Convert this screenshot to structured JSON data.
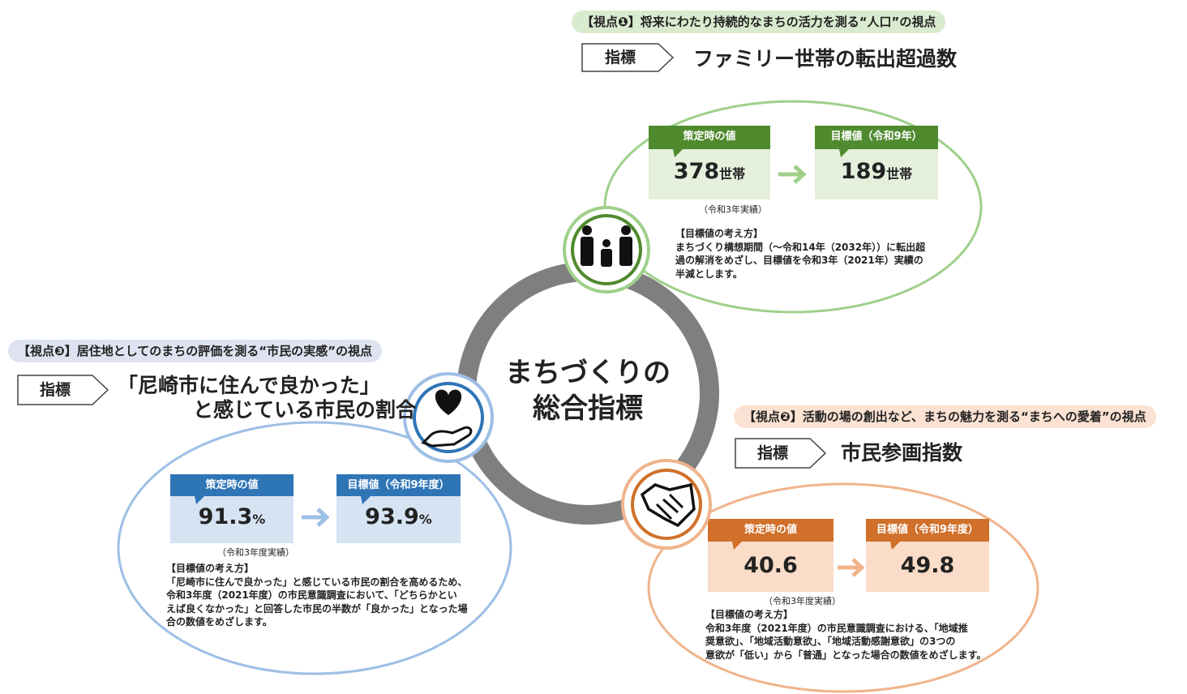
{
  "center": {
    "lines": [
      "まちづくりの",
      "総合指標"
    ]
  },
  "viewpoints": [
    {
      "header": "【視点❶】将来にわたり持続的なまちの活力を測る“人口”の視点",
      "indicator_label": "指標",
      "indicator_name": [
        "ファミリー世帯の転出超過数"
      ],
      "baseline": {
        "label": "策定時の値",
        "value": 378,
        "unit": "世帯",
        "note": "（令和3年実績）"
      },
      "target": {
        "label": "目標値（令和9年）",
        "value": 189,
        "unit": "世帯"
      },
      "rationale": {
        "title": "【目標値の考え方】",
        "lines": [
          "まちづくり構想期間（〜令和14年（2032年））に転出超",
          "過の解消をめざし、目標値を令和3年（2021年）実績の",
          "半減とします。"
        ]
      }
    },
    {
      "header": "【視点❷】活動の場の創出など、まちの魅力を測る“まちへの愛着”の視点",
      "indicator_label": "指標",
      "indicator_name": [
        "市民参画指数"
      ],
      "baseline": {
        "label": "策定時の値",
        "value": 40.6,
        "note": "（令和3年度実績）"
      },
      "target": {
        "label": "目標値（令和9年度）",
        "value": 49.8
      },
      "rationale": {
        "title": "【目標値の考え方】",
        "lines": [
          "令和3年度（2021年度）の市民意識調査における、「地域推",
          "奨意欲」、「地域活動意欲」、「地域活動感謝意欲」の3つの",
          "意欲が「低い」から「普通」となった場合の数値をめざします。"
        ]
      }
    },
    {
      "header": "【視点❸】居住地としてのまちの評価を測る“市民の実感”の視点",
      "indicator_label": "指標",
      "indicator_name": [
        "「尼崎市に住んで良かった」",
        "と感じている市民の割合"
      ],
      "baseline": {
        "label": "策定時の値",
        "value": 91.3,
        "unit": "%",
        "note": "（令和3年度実績）"
      },
      "target": {
        "label": "目標値（令和9年度）",
        "value": 93.9,
        "unit": "%"
      },
      "rationale": {
        "title": "【目標値の考え方】",
        "lines": [
          "「尼崎市に住んで良かった」と感じている市民の割合を高めるため、",
          "令和3年度（2021年度）の市民意識調査において、「どちらかとい",
          "えば良くなかった」と回答した市民の半数が「良かった」となった場",
          "合の数値をめざします。"
        ]
      }
    }
  ]
}
